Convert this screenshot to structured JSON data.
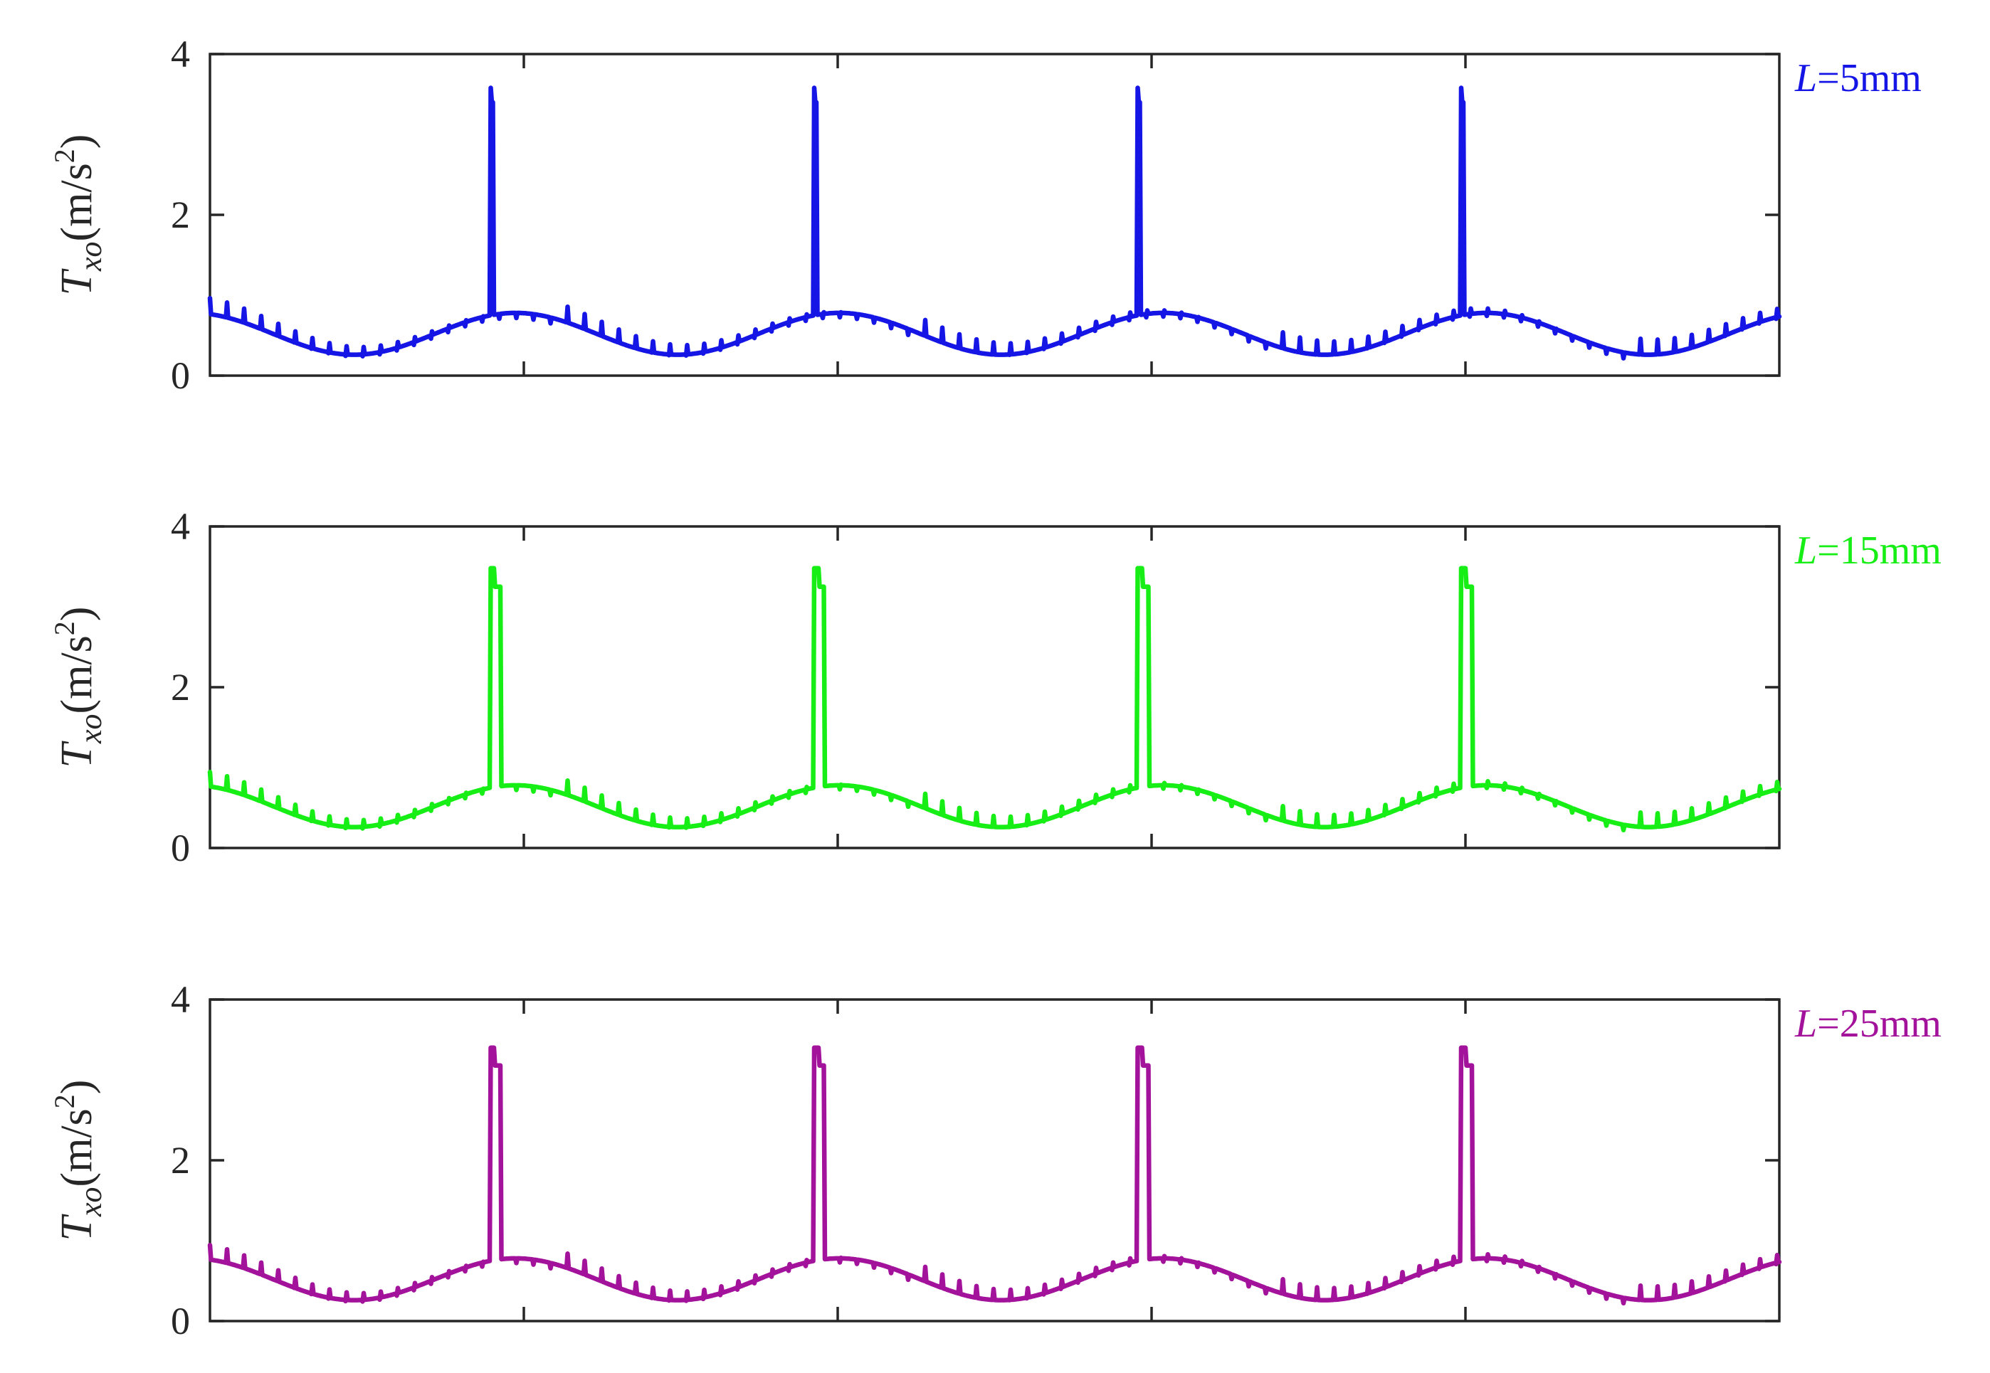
{
  "chart_data": [
    {
      "type": "line",
      "color": "#1515e6",
      "label_prefix": "L",
      "label_suffix": "=5mm",
      "ylabel_main": "T",
      "ylabel_sub": "xo",
      "ylabel_unit": "(m/s",
      "ylabel_sup": "2",
      "ylabel_close": ")",
      "ylim": [
        0,
        4
      ],
      "yticks": [
        "0",
        "2",
        "4"
      ],
      "xticks_count": 5,
      "grid": false,
      "series": [
        {
          "period_count": 4.85,
          "baseline_mean": 0.52,
          "baseline_amplitude": 0.26,
          "spike_peak": 3.58,
          "spike_second": 3.4,
          "ripple": 0.22
        }
      ]
    },
    {
      "type": "line",
      "color": "#16ee16",
      "label_prefix": "L",
      "label_suffix": "=15mm",
      "ylabel_main": "T",
      "ylabel_sub": "xo",
      "ylabel_unit": "(m/s",
      "ylabel_sup": "2",
      "ylabel_close": ")",
      "ylim": [
        0,
        4
      ],
      "yticks": [
        "0",
        "2",
        "4"
      ],
      "xticks_count": 5,
      "grid": false,
      "series": [
        {
          "period_count": 4.85,
          "baseline_mean": 0.52,
          "baseline_amplitude": 0.26,
          "spike_peak": 3.48,
          "spike_second": 3.25,
          "ripple": 0.2
        }
      ]
    },
    {
      "type": "line",
      "color": "#a3129a",
      "label_prefix": "L",
      "label_suffix": "=25mm",
      "ylabel_main": "T",
      "ylabel_sub": "xo",
      "ylabel_unit": "(m/s",
      "ylabel_sup": "2",
      "ylabel_close": ")",
      "ylim": [
        0,
        4
      ],
      "yticks": [
        "0",
        "2",
        "4"
      ],
      "xticks_count": 5,
      "grid": false,
      "series": [
        {
          "period_count": 4.85,
          "baseline_mean": 0.52,
          "baseline_amplitude": 0.26,
          "spike_peak": 3.4,
          "spike_second": 3.18,
          "ripple": 0.2
        }
      ]
    }
  ]
}
